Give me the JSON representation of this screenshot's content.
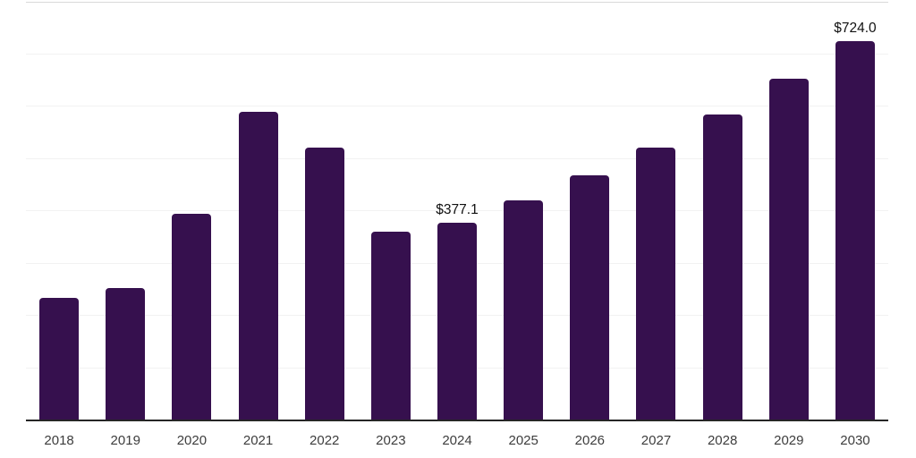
{
  "chart_data": {
    "type": "bar",
    "title": "",
    "xlabel": "",
    "ylabel": "",
    "categories": [
      "2018",
      "2019",
      "2020",
      "2021",
      "2022",
      "2023",
      "2024",
      "2025",
      "2026",
      "2027",
      "2028",
      "2029",
      "2030"
    ],
    "values": [
      234,
      253,
      395,
      590,
      522,
      361,
      377.1,
      421,
      469,
      522,
      584,
      653,
      724
    ],
    "data_labels": [
      "",
      "",
      "",
      "",
      "",
      "",
      "$377.1",
      "",
      "",
      "",
      "",
      "",
      "$724.0"
    ],
    "ylim": [
      0,
      800
    ],
    "ytick_step": 100,
    "grid": "horizontal",
    "legend": "none",
    "colors": {
      "bar": "#36104e",
      "axis_line": "#262626",
      "gridline": "#f2f2f2",
      "top_border": "#d9d9d9",
      "data_label_text": "#111111",
      "tick_text": "#3d3d3d",
      "background": "#ffffff"
    }
  }
}
